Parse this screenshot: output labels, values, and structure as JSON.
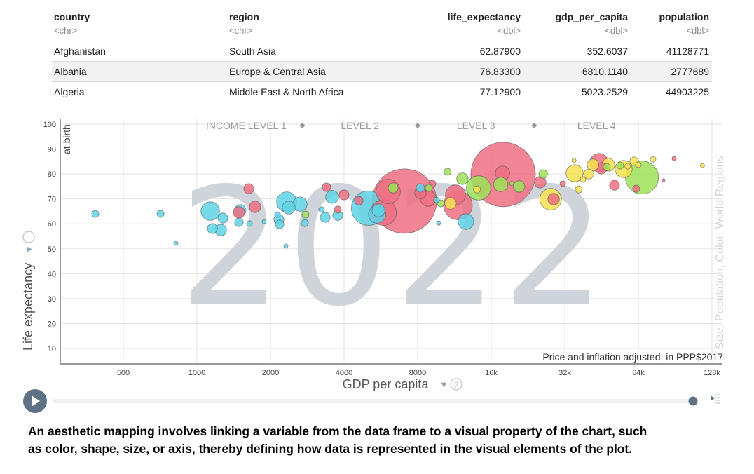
{
  "table": {
    "columns": [
      {
        "name": "country",
        "type": "<chr>",
        "align": "left"
      },
      {
        "name": "region",
        "type": "<chr>",
        "align": "left"
      },
      {
        "name": "life_expectancy",
        "type": "<dbl>",
        "align": "right"
      },
      {
        "name": "gdp_per_capita",
        "type": "<dbl>",
        "align": "right"
      },
      {
        "name": "population",
        "type": "<dbl>",
        "align": "right"
      }
    ],
    "rows": [
      [
        "Afghanistan",
        "South Asia",
        "62.87900",
        "352.6037",
        "41128771"
      ],
      [
        "Albania",
        "Europe & Central Asia",
        "76.83300",
        "6810.1140",
        "2777689"
      ],
      [
        "Algeria",
        "Middle East & North Africa",
        "77.12900",
        "5023.2529",
        "44903225"
      ]
    ]
  },
  "chart_data": {
    "type": "scatter",
    "year_label": "2022",
    "xlabel": "GDP per capita",
    "xnote": "Price and inflation adjusted, in PPP$2017",
    "ylabel": "Life expectancy",
    "ylabel_sub": "at birth",
    "size_color_label": "Size: Population, Color: World Regions",
    "x_scale": "log2",
    "xlim": [
      276,
      140000
    ],
    "ylim": [
      6,
      102
    ],
    "x_ticks": [
      {
        "v": 500,
        "l": "500"
      },
      {
        "v": 1000,
        "l": "1000"
      },
      {
        "v": 2000,
        "l": "2000"
      },
      {
        "v": 4000,
        "l": "4000"
      },
      {
        "v": 8000,
        "l": "8000"
      },
      {
        "v": 16000,
        "l": "16k"
      },
      {
        "v": 32000,
        "l": "32k"
      },
      {
        "v": 64000,
        "l": "64k"
      },
      {
        "v": 128000,
        "l": "128k"
      }
    ],
    "y_ticks": [
      10,
      20,
      30,
      40,
      50,
      60,
      70,
      80,
      90,
      100
    ],
    "income_levels": [
      "INCOME LEVEL 1",
      "LEVEL 2",
      "LEVEL 3",
      "LEVEL 4"
    ],
    "income_level_bounds": [
      2700,
      8000,
      24000
    ],
    "grid": true,
    "region_colors": [
      "#5fd4e6",
      "#ee6f82",
      "#9ee257",
      "#f6e24f"
    ],
    "points_fields": [
      "gdp_per_capita",
      "life_expectancy",
      "population_millions",
      "region_color_index"
    ],
    "points": [
      [
        384,
        64.0,
        17,
        0
      ],
      [
        710,
        64.0,
        17,
        0
      ],
      [
        820,
        52.2,
        6,
        0
      ],
      [
        1134,
        65.1,
        118,
        0
      ],
      [
        1157,
        58.1,
        34,
        0
      ],
      [
        1252,
        57.5,
        45,
        0
      ],
      [
        1277,
        62.3,
        34,
        0
      ],
      [
        1486,
        60.6,
        25,
        0
      ],
      [
        1505,
        65.4,
        45,
        0
      ],
      [
        1641,
        60.1,
        11,
        0
      ],
      [
        1884,
        60.9,
        6,
        0
      ],
      [
        2136,
        63.7,
        11,
        0
      ],
      [
        2165,
        61.8,
        34,
        0
      ],
      [
        2180,
        59.8,
        25,
        0
      ],
      [
        2313,
        51.1,
        6,
        0
      ],
      [
        2328,
        68.8,
        136,
        0
      ],
      [
        2375,
        66.5,
        57,
        0
      ],
      [
        2639,
        67.9,
        70,
        0
      ],
      [
        2764,
        60.3,
        17,
        0
      ],
      [
        3238,
        65.7,
        11,
        0
      ],
      [
        3347,
        62.6,
        34,
        0
      ],
      [
        3575,
        70.8,
        57,
        0
      ],
      [
        3769,
        63.4,
        34,
        0
      ],
      [
        5040,
        66.3,
        401,
        0
      ],
      [
        5530,
        65.4,
        57,
        0
      ],
      [
        5460,
        63.7,
        100,
        0
      ],
      [
        8210,
        74.4,
        25,
        0
      ],
      [
        12610,
        60.9,
        84,
        0
      ],
      [
        9750,
        60.3,
        6,
        0
      ],
      [
        9560,
        69.6,
        11,
        0
      ],
      [
        1630,
        74.1,
        34,
        1
      ],
      [
        1729,
        66.8,
        45,
        1
      ],
      [
        1486,
        64.6,
        45,
        1
      ],
      [
        3390,
        74.7,
        25,
        1
      ],
      [
        3769,
        65.7,
        17,
        1
      ],
      [
        4000,
        71.6,
        34,
        1
      ],
      [
        4595,
        69.3,
        25,
        1
      ],
      [
        6063,
        73.0,
        201,
        1
      ],
      [
        7058,
        69.1,
        1410,
        1
      ],
      [
        5800,
        64.5,
        226,
        1
      ],
      [
        8210,
        72.4,
        45,
        1
      ],
      [
        8830,
        70.2,
        84,
        1
      ],
      [
        9190,
        76.1,
        17,
        1
      ],
      [
        11420,
        71.6,
        136,
        1
      ],
      [
        11700,
        67.4,
        280,
        1
      ],
      [
        17900,
        79.8,
        1410,
        1
      ],
      [
        17800,
        80.3,
        70,
        1
      ],
      [
        25400,
        76.7,
        45,
        1
      ],
      [
        28800,
        69.9,
        45,
        1
      ],
      [
        31400,
        76.1,
        11,
        1
      ],
      [
        44200,
        84.5,
        118,
        1
      ],
      [
        51100,
        75.5,
        34,
        1
      ],
      [
        45100,
        82.3,
        45,
        1
      ],
      [
        89600,
        86.2,
        6,
        1
      ],
      [
        81200,
        77.5,
        3,
        1
      ],
      [
        62700,
        74.1,
        17,
        1
      ],
      [
        2780,
        63.7,
        17,
        2
      ],
      [
        6350,
        74.4,
        34,
        2
      ],
      [
        8890,
        74.4,
        17,
        2
      ],
      [
        9950,
        68.2,
        17,
        2
      ],
      [
        10600,
        80.9,
        17,
        2
      ],
      [
        12200,
        78.1,
        45,
        2
      ],
      [
        14200,
        74.4,
        201,
        2
      ],
      [
        17500,
        75.8,
        70,
        2
      ],
      [
        20800,
        75.0,
        45,
        2
      ],
      [
        26100,
        80.0,
        25,
        2
      ],
      [
        66200,
        78.6,
        369,
        2
      ],
      [
        53900,
        83.4,
        17,
        2
      ],
      [
        47500,
        82.8,
        17,
        2
      ],
      [
        19400,
        76.2,
        6,
        2
      ],
      [
        10900,
        68.2,
        45,
        3
      ],
      [
        14000,
        73.8,
        17,
        3
      ],
      [
        28000,
        69.9,
        157,
        3
      ],
      [
        35100,
        80.3,
        100,
        3
      ],
      [
        40100,
        80.0,
        34,
        3
      ],
      [
        36500,
        73.8,
        17,
        3
      ],
      [
        38000,
        77.8,
        11,
        3
      ],
      [
        41700,
        83.7,
        45,
        3
      ],
      [
        48200,
        83.7,
        57,
        3
      ],
      [
        55700,
        82.0,
        100,
        3
      ],
      [
        61500,
        85.1,
        25,
        3
      ],
      [
        73500,
        85.9,
        11,
        3
      ],
      [
        117000,
        83.4,
        6,
        3
      ],
      [
        34900,
        85.4,
        6,
        3
      ],
      [
        57900,
        83.1,
        11,
        3
      ],
      [
        64000,
        83.7,
        11,
        3
      ]
    ]
  },
  "player": {
    "play_label": "play",
    "progress": 1.0
  },
  "caption": {
    "line1": "An aesthetic mapping involves linking a variable from the data frame to a visual property of the chart, such",
    "line2": "as color, shape, size, or axis, thereby defining how data is represented in the visual elements of the plot."
  }
}
